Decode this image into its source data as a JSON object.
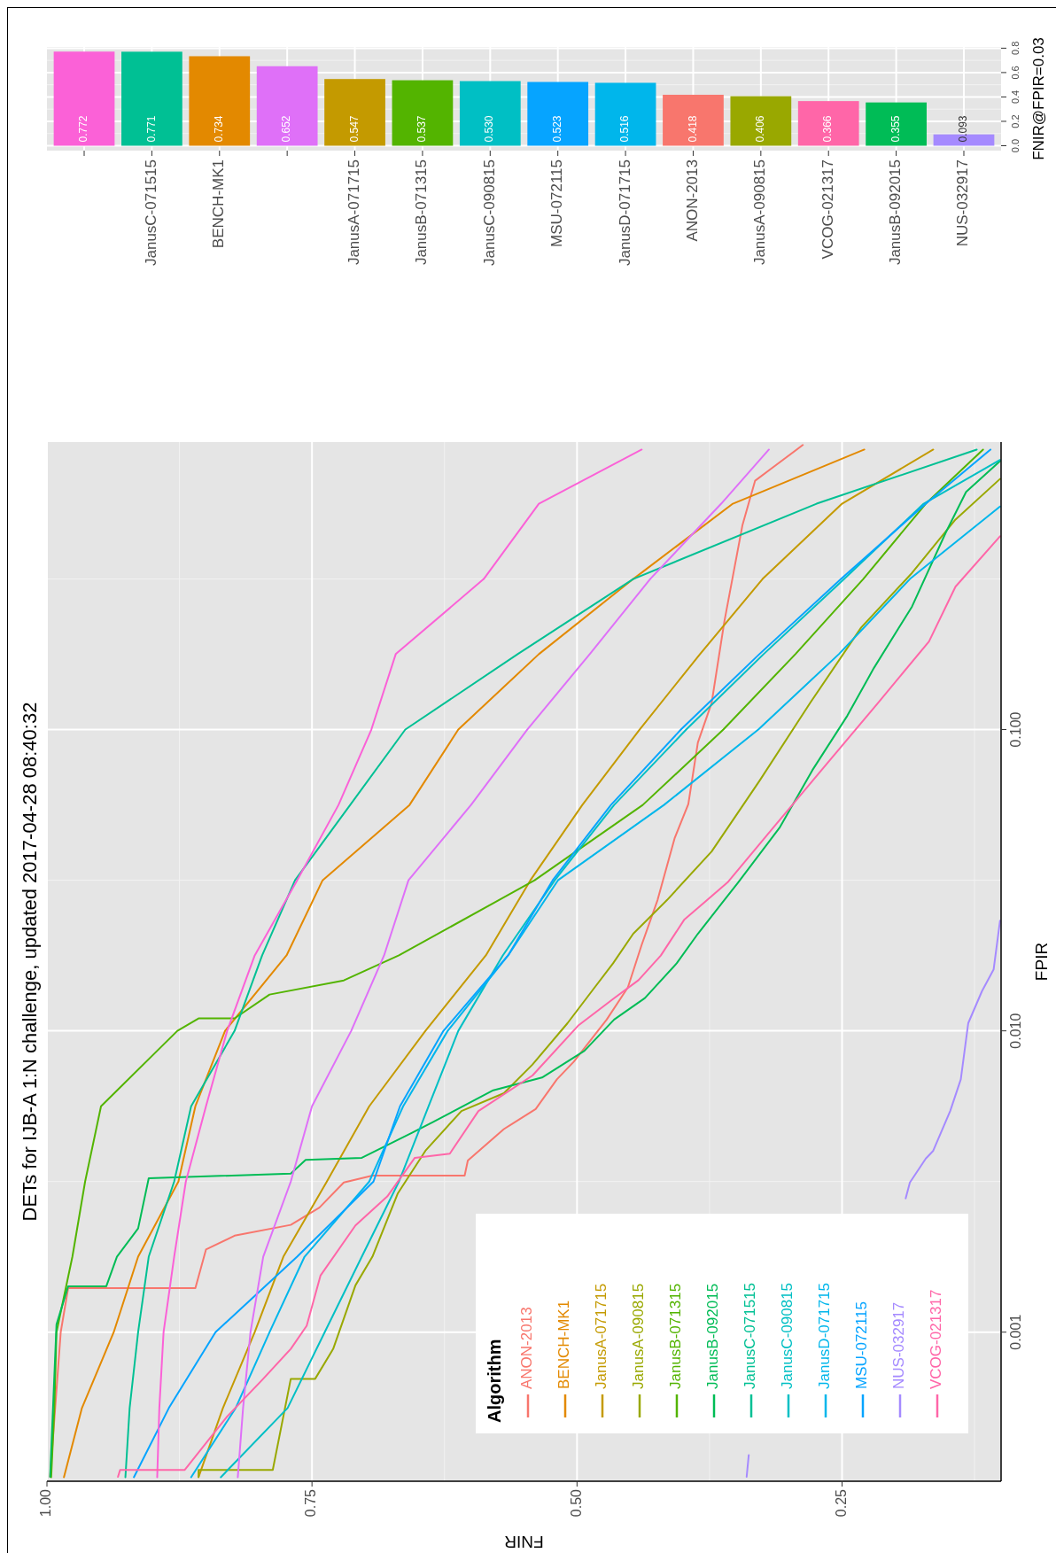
{
  "chart_data": [
    {
      "type": "line",
      "title": "DETs for IJB-A 1:N challenge, updated 2017-04-28 08:40:32",
      "xlabel": "FNIR",
      "ylabel": "FPIR",
      "legend_title": "Algorithm",
      "legend": "bottom right",
      "grid": true,
      "log": "y",
      "xlim": [
        1.0,
        0.1
      ],
      "ylim": [
        0.00032,
        0.9
      ],
      "xticks": [
        {
          "value": 1.0,
          "label": "1.00"
        },
        {
          "value": 0.75,
          "label": "0.75"
        },
        {
          "value": 0.5,
          "label": "0.50"
        },
        {
          "value": 0.25,
          "label": "0.25"
        }
      ],
      "yticks": [
        {
          "value": 0.001,
          "label": "0.001"
        },
        {
          "value": 0.01,
          "label": "0.010"
        },
        {
          "value": 0.1,
          "label": "0.100"
        }
      ],
      "series": [
        {
          "name": "ANON-2013",
          "color": "#f8766d",
          "values": [
            0.000331,
            0.001,
            0.0014,
            0.0014,
            0.00188,
            0.00209,
            0.00227,
            0.00259,
            0.00314,
            0.00331,
            0.00331,
            0.00371,
            0.00472,
            0.0055,
            0.0069,
            0.0079,
            0.0109,
            0.01395,
            0.0193,
            0.0272,
            0.0435,
            0.0566,
            0.0906,
            0.1227,
            0.2286,
            0.476,
            0.67,
            0.738,
            0.88
          ],
          "x": [
            0.997,
            0.987,
            0.98,
            0.86,
            0.85,
            0.823,
            0.77,
            0.743,
            0.72,
            0.693,
            0.606,
            0.603,
            0.569,
            0.539,
            0.519,
            0.503,
            0.472,
            0.452,
            0.439,
            0.424,
            0.408,
            0.395,
            0.386,
            0.373,
            0.361,
            0.344,
            0.332,
            0.316,
            0.287
          ]
        },
        {
          "name": "BENCH-MK1",
          "color": "#e38900",
          "values": [
            0.00033,
            0.00056,
            0.001,
            0.00178,
            0.00316,
            0.00562,
            0.01,
            0.0178,
            0.0316,
            0.0562,
            0.1,
            0.178,
            0.316,
            0.562,
            0.85
          ],
          "x": [
            0.984,
            0.967,
            0.937,
            0.914,
            0.876,
            0.86,
            0.832,
            0.774,
            0.74,
            0.658,
            0.612,
            0.536,
            0.447,
            0.353,
            0.229
          ]
        },
        {
          "name": "JanusA-071715",
          "color": "#c49a00",
          "values": [
            0.00033,
            0.00056,
            0.001,
            0.00178,
            0.00316,
            0.00562,
            0.01,
            0.0178,
            0.0316,
            0.0562,
            0.1,
            0.178,
            0.316,
            0.562,
            0.85
          ],
          "x": [
            0.857,
            0.834,
            0.804,
            0.777,
            0.736,
            0.696,
            0.643,
            0.586,
            0.544,
            0.495,
            0.441,
            0.384,
            0.325,
            0.25,
            0.164
          ]
        },
        {
          "name": "JanusA-090815",
          "color": "#99a800",
          "values": [
            0.000331,
            0.000349,
            0.000349,
            0.0007,
            0.0007,
            0.00088,
            0.00143,
            0.00178,
            0.00289,
            0.004,
            0.00542,
            0.00621,
            0.00773,
            0.0106,
            0.01355,
            0.01675,
            0.021,
            0.0272,
            0.0394,
            0.0675,
            0.1227,
            0.218,
            0.331,
            0.498,
            0.679
          ],
          "x": [
            0.857,
            0.857,
            0.787,
            0.77,
            0.747,
            0.73,
            0.709,
            0.693,
            0.669,
            0.643,
            0.609,
            0.569,
            0.542,
            0.509,
            0.486,
            0.466,
            0.447,
            0.415,
            0.373,
            0.328,
            0.28,
            0.232,
            0.184,
            0.143,
            0.101
          ]
        },
        {
          "name": "JanusB-071315",
          "color": "#53b400",
          "values": [
            0.00033,
            0.00056,
            0.001,
            0.00178,
            0.00316,
            0.00562,
            0.01,
            0.011,
            0.011,
            0.0132,
            0.0147,
            0.0178,
            0.0316,
            0.0562,
            0.1,
            0.178,
            0.316,
            0.562,
            0.85
          ],
          "x": [
            0.996,
            0.993,
            0.991,
            0.976,
            0.964,
            0.949,
            0.877,
            0.857,
            0.823,
            0.79,
            0.72,
            0.668,
            0.54,
            0.438,
            0.362,
            0.294,
            0.23,
            0.171,
            0.117
          ]
        },
        {
          "name": "JanusB-092015",
          "color": "#00bc56",
          "values": [
            0.000331,
            0.00106,
            0.00142,
            0.00142,
            0.00178,
            0.00221,
            0.00324,
            0.00336,
            0.00373,
            0.00379,
            0.00458,
            0.00498,
            0.00635,
            0.007,
            0.00859,
            0.0109,
            0.01284,
            0.01675,
            0.021,
            0.0311,
            0.0472,
            0.0733,
            0.1112,
            0.16,
            0.256,
            0.452,
            0.615,
            0.778
          ],
          "x": [
            0.997,
            0.991,
            0.98,
            0.944,
            0.934,
            0.914,
            0.904,
            0.77,
            0.756,
            0.703,
            0.656,
            0.636,
            0.579,
            0.533,
            0.493,
            0.465,
            0.436,
            0.406,
            0.386,
            0.348,
            0.309,
            0.278,
            0.245,
            0.22,
            0.184,
            0.152,
            0.133,
            0.101
          ]
        },
        {
          "name": "JanusC-071515",
          "color": "#00c094",
          "values": [
            0.00033,
            0.00056,
            0.001,
            0.00178,
            0.00316,
            0.00562,
            0.01,
            0.0178,
            0.0316,
            0.0562,
            0.1,
            0.178,
            0.316,
            0.562,
            0.85
          ],
          "x": [
            0.926,
            0.922,
            0.914,
            0.904,
            0.88,
            0.864,
            0.823,
            0.797,
            0.766,
            0.714,
            0.662,
            0.556,
            0.447,
            0.274,
            0.123
          ]
        },
        {
          "name": "JanusC-090815",
          "color": "#00bfc4",
          "values": [
            0.00033,
            0.00056,
            0.001,
            0.00178,
            0.00316,
            0.00562,
            0.01,
            0.0178,
            0.0316,
            0.0562,
            0.1,
            0.178,
            0.316,
            0.562,
            0.785
          ],
          "x": [
            0.836,
            0.773,
            0.738,
            0.703,
            0.668,
            0.64,
            0.612,
            0.57,
            0.521,
            0.465,
            0.397,
            0.324,
            0.248,
            0.173,
            0.101
          ]
        },
        {
          "name": "JanusD-071715",
          "color": "#00b6eb",
          "values": [
            0.00033,
            0.00056,
            0.001,
            0.00178,
            0.00316,
            0.00562,
            0.01,
            0.0178,
            0.0316,
            0.0562,
            0.1,
            0.178,
            0.316,
            0.55
          ],
          "x": [
            0.864,
            0.822,
            0.79,
            0.757,
            0.696,
            0.664,
            0.622,
            0.565,
            0.518,
            0.418,
            0.329,
            0.253,
            0.186,
            0.101
          ]
        },
        {
          "name": "MSU-072115",
          "color": "#06a4ff",
          "values": [
            0.00033,
            0.00056,
            0.001,
            0.00178,
            0.00316,
            0.00562,
            0.01,
            0.0178,
            0.0316,
            0.0562,
            0.1,
            0.178,
            0.316,
            0.562,
            0.85
          ],
          "x": [
            0.918,
            0.885,
            0.841,
            0.764,
            0.692,
            0.667,
            0.626,
            0.565,
            0.523,
            0.468,
            0.402,
            0.328,
            0.251,
            0.171,
            0.11
          ]
        },
        {
          "name": "NUS-032917",
          "color": "#a58aff",
          "values": [
            0.000331,
            0.000391,
            null,
            0.00278,
            0.00314,
            0.00377,
            0.004,
            0.00542,
            0.0069,
            0.0106,
            0.01355,
            0.016,
            0.0232
          ],
          "x": [
            0.34,
            0.338,
            0.26,
            0.19,
            0.186,
            0.171,
            0.164,
            0.148,
            0.138,
            0.131,
            0.118,
            0.107,
            0.101
          ]
        },
        {
          "color": "#df70f8",
          "values": [
            0.00033,
            0.00056,
            0.001,
            0.00178,
            0.00316,
            0.00562,
            0.01,
            0.0178,
            0.0316,
            0.0562,
            0.1,
            0.178,
            0.316,
            0.562,
            0.85
          ],
          "x": [
            0.82,
            0.815,
            0.808,
            0.796,
            0.77,
            0.75,
            0.713,
            0.682,
            0.659,
            0.6,
            0.547,
            0.488,
            0.431,
            0.364,
            0.319
          ]
        },
        {
          "color": "#fb61d7",
          "values": [
            0.00033,
            0.00056,
            0.001,
            0.00178,
            0.00316,
            0.00562,
            0.01,
            0.0178,
            0.0316,
            0.0562,
            0.1,
            0.178,
            0.316,
            0.562,
            0.85
          ],
          "x": [
            0.896,
            0.894,
            0.89,
            0.88,
            0.869,
            0.85,
            0.83,
            0.804,
            0.764,
            0.725,
            0.694,
            0.671,
            0.588,
            0.536,
            0.439
          ]
        },
        {
          "name": "VCOG-021317",
          "color": "#ff66a8",
          "values": [
            0.000331,
            0.000349,
            0.000349,
            0.000525,
            0.0007,
            0.00088,
            0.00105,
            0.00154,
            0.00226,
            0.00282,
            0.00379,
            0.00391,
            0.00542,
            0.00711,
            0.0104,
            0.01284,
            0.01473,
            0.01778,
            0.02335,
            0.0311,
            0.0472,
            0.0773,
            0.1227,
            0.196,
            0.298,
            0.438
          ],
          "x": [
            0.933,
            0.931,
            0.87,
            0.83,
            0.796,
            0.77,
            0.755,
            0.742,
            0.709,
            0.679,
            0.653,
            0.62,
            0.593,
            0.542,
            0.499,
            0.465,
            0.442,
            0.421,
            0.399,
            0.358,
            0.315,
            0.264,
            0.216,
            0.168,
            0.143,
            0.101
          ]
        }
      ]
    },
    {
      "type": "bar",
      "ylabel": "FNIR@FPIR=0.03",
      "grid": true,
      "ylim": [
        -0.04,
        0.81
      ],
      "yticks": [
        {
          "value": 0,
          "label": "0.0"
        },
        {
          "value": 0.2,
          "label": "0.2"
        },
        {
          "value": 0.4,
          "label": "0.4"
        },
        {
          "value": 0.6,
          "label": "0.6"
        },
        {
          "value": 0.8,
          "label": "0.8"
        }
      ],
      "categories": [
        null,
        "JanusC-071515",
        "BENCH-MK1",
        null,
        "JanusA-071715",
        "JanusB-071315",
        "JanusC-090815",
        "MSU-072115",
        "JanusD-071715",
        "ANON-2013",
        "JanusA-090815",
        "VCOG-021317",
        "JanusB-092015",
        "NUS-032917"
      ],
      "values": [
        0.772,
        0.771,
        0.734,
        0.652,
        0.547,
        0.537,
        0.53,
        0.523,
        0.516,
        0.418,
        0.406,
        0.366,
        0.355,
        0.093
      ],
      "colors": [
        "#fb61d7",
        "#00c094",
        "#e38900",
        "#df70f8",
        "#c49a00",
        "#53b400",
        "#00bfc4",
        "#06a4ff",
        "#00b6eb",
        "#f8766d",
        "#99a800",
        "#ff66a8",
        "#00bc56",
        "#a58aff"
      ],
      "value_labels": [
        "0.772",
        "0.771",
        "0.734",
        "0.652",
        "0.547",
        "0.537",
        "0.530",
        "0.523",
        "0.516",
        "0.418",
        "0.406",
        "0.366",
        "0.355",
        "0.093"
      ]
    }
  ]
}
